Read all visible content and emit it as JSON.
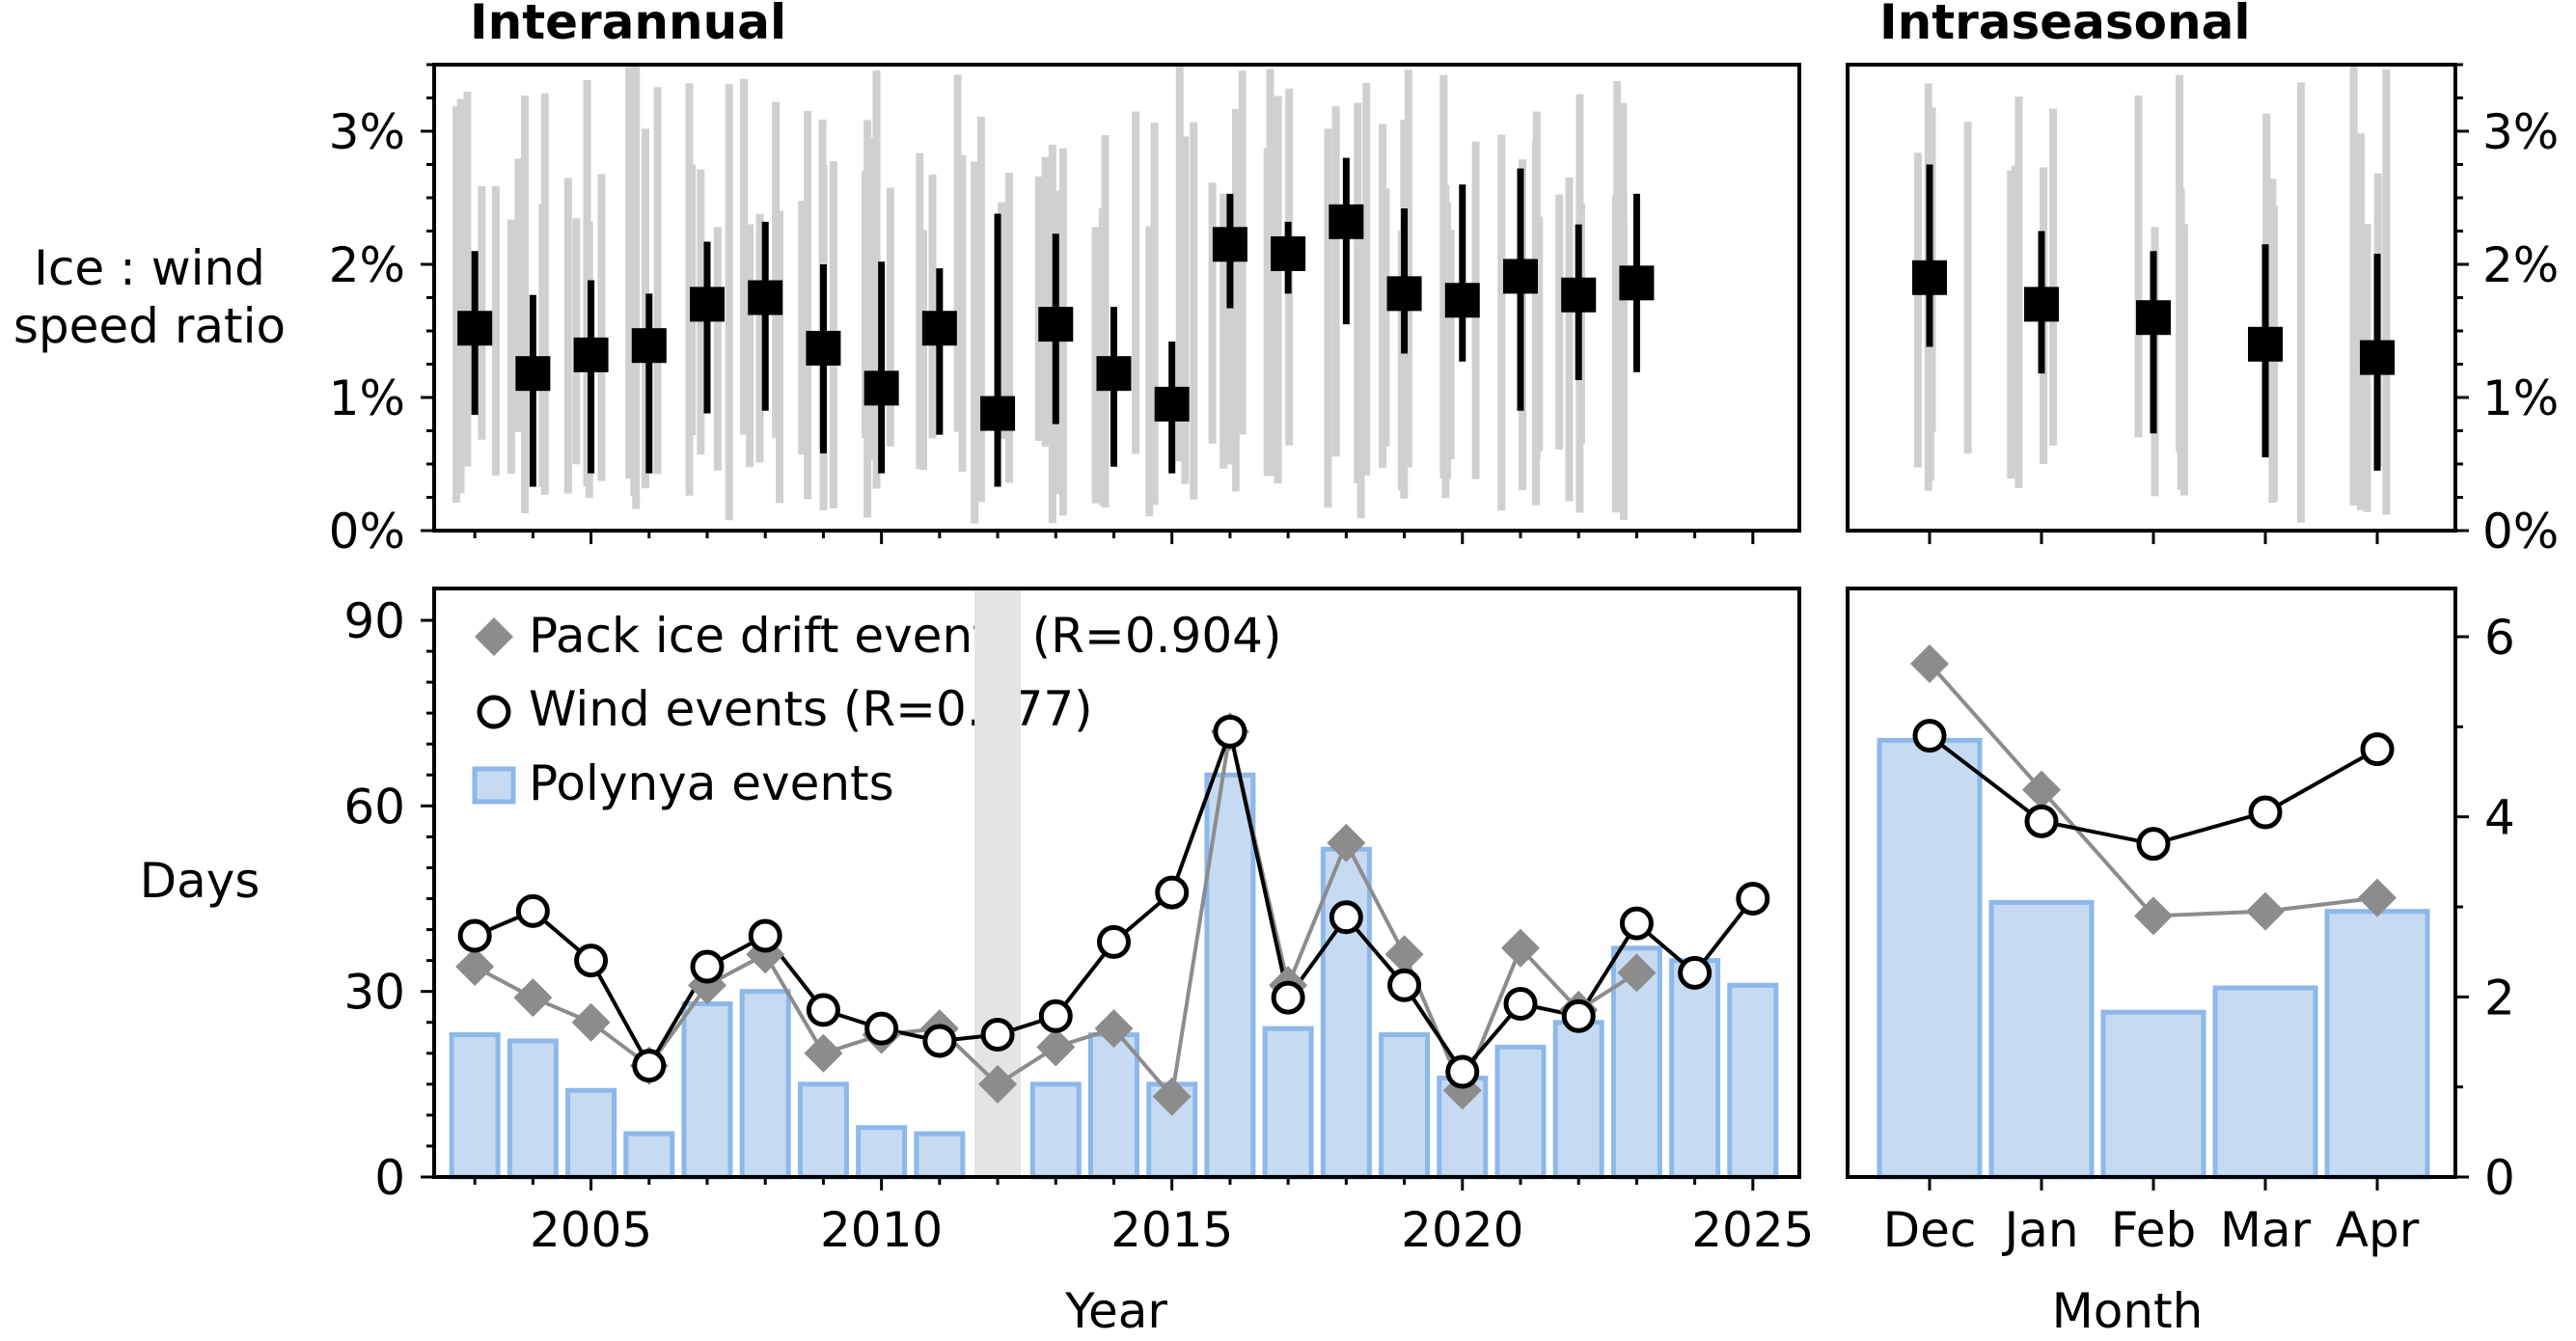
{
  "chart_data": [
    {
      "panel": "interannual-ratio",
      "type": "scatter",
      "title": "Interannual",
      "ylabel_lines": [
        "Ice : wind",
        "speed ratio"
      ],
      "yticks": [
        "0%",
        "1%",
        "2%",
        "3%"
      ],
      "ylim": [
        0,
        3.5
      ],
      "xlim": [
        2002.3,
        2025.8
      ],
      "x": [
        2003,
        2004,
        2005,
        2006,
        2007,
        2008,
        2009,
        2010,
        2011,
        2012,
        2013,
        2014,
        2015,
        2016,
        2017,
        2018,
        2019,
        2020,
        2021,
        2022,
        2023
      ],
      "median": [
        1.52,
        1.18,
        1.32,
        1.39,
        1.7,
        1.75,
        1.37,
        1.07,
        1.52,
        0.88,
        1.55,
        1.18,
        0.95,
        2.15,
        2.08,
        2.32,
        1.78,
        1.73,
        1.91,
        1.77,
        1.86
      ],
      "low": [
        0.87,
        0.33,
        0.43,
        0.43,
        0.88,
        0.9,
        0.58,
        0.43,
        0.72,
        0.33,
        0.8,
        0.48,
        0.43,
        1.67,
        1.78,
        1.55,
        1.33,
        1.27,
        0.9,
        1.13,
        1.19
      ],
      "high": [
        2.1,
        1.77,
        1.88,
        1.78,
        2.17,
        2.32,
        2.0,
        2.02,
        1.97,
        2.38,
        2.23,
        1.68,
        1.42,
        2.53,
        2.32,
        2.8,
        2.42,
        2.6,
        2.72,
        2.3,
        2.53
      ],
      "daily_series_color": "#d0d0d0",
      "marker_color": "#000000",
      "grid": false
    },
    {
      "panel": "intraseasonal-ratio",
      "type": "scatter",
      "title": "Intraseasonal",
      "yticks": [
        "0%",
        "1%",
        "2%",
        "3%"
      ],
      "ylim": [
        0,
        3.5
      ],
      "categories": [
        "Dec",
        "Jan",
        "Feb",
        "Mar",
        "Apr"
      ],
      "median": [
        1.9,
        1.7,
        1.6,
        1.4,
        1.3
      ],
      "low": [
        1.38,
        1.18,
        0.73,
        0.55,
        0.45
      ],
      "high": [
        2.75,
        2.25,
        2.1,
        2.15,
        2.08
      ],
      "grid": false
    },
    {
      "panel": "interannual-days",
      "type": "bar",
      "xlabel": "Year",
      "ylabel": "Days",
      "yticks": [
        "0",
        "30",
        "60",
        "90"
      ],
      "ylim": [
        0,
        90
      ],
      "xticks": [
        "2005",
        "2010",
        "2015",
        "2020",
        "2025"
      ],
      "x": [
        2003,
        2004,
        2005,
        2006,
        2007,
        2008,
        2009,
        2010,
        2011,
        2012,
        2013,
        2014,
        2015,
        2016,
        2017,
        2018,
        2019,
        2020,
        2021,
        2022,
        2023,
        2024,
        2025
      ],
      "highlight_year": 2012,
      "series": [
        {
          "name": "Pack ice drift events (R=0.904)",
          "kind": "diamond-line",
          "color": "#8c8c8c",
          "values": [
            34,
            29,
            25,
            18,
            31,
            36,
            20,
            23,
            24,
            15,
            21,
            24,
            13,
            72,
            31,
            54,
            36,
            14,
            37,
            27,
            33,
            null,
            null
          ]
        },
        {
          "name": "Wind events (R=0.777)",
          "kind": "circle-line",
          "color": "#000000",
          "values": [
            39,
            43,
            35,
            18,
            34,
            39,
            27,
            24,
            22,
            23,
            26,
            38,
            46,
            72,
            29,
            42,
            31,
            17,
            28,
            26,
            41,
            33,
            45
          ]
        },
        {
          "name": "Polynya events",
          "kind": "bar",
          "color": "#c6dbf2",
          "edge": "#8db8ea",
          "values": [
            23,
            22,
            14,
            7,
            28,
            30,
            15,
            8,
            7,
            null,
            15,
            23,
            15,
            65,
            24,
            53,
            23,
            16,
            21,
            25,
            37,
            35,
            31
          ]
        }
      ],
      "legend": "top-left",
      "grid": false
    },
    {
      "panel": "intraseasonal-days",
      "type": "bar",
      "xlabel": "Month",
      "yticks": [
        "0",
        "2",
        "4",
        "6"
      ],
      "ylim": [
        0,
        6.5
      ],
      "categories": [
        "Dec",
        "Jan",
        "Feb",
        "Mar",
        "Apr"
      ],
      "series": [
        {
          "name": "Pack ice drift events",
          "kind": "diamond-line",
          "color": "#8c8c8c",
          "values": [
            5.7,
            4.3,
            2.9,
            2.95,
            3.1
          ]
        },
        {
          "name": "Wind events",
          "kind": "circle-line",
          "color": "#000000",
          "values": [
            4.9,
            3.95,
            3.7,
            4.05,
            4.75
          ]
        },
        {
          "name": "Polynya events",
          "kind": "bar",
          "color": "#c6dbf2",
          "edge": "#8db8ea",
          "values": [
            4.85,
            3.05,
            1.83,
            2.1,
            2.95
          ]
        }
      ],
      "grid": false
    }
  ]
}
